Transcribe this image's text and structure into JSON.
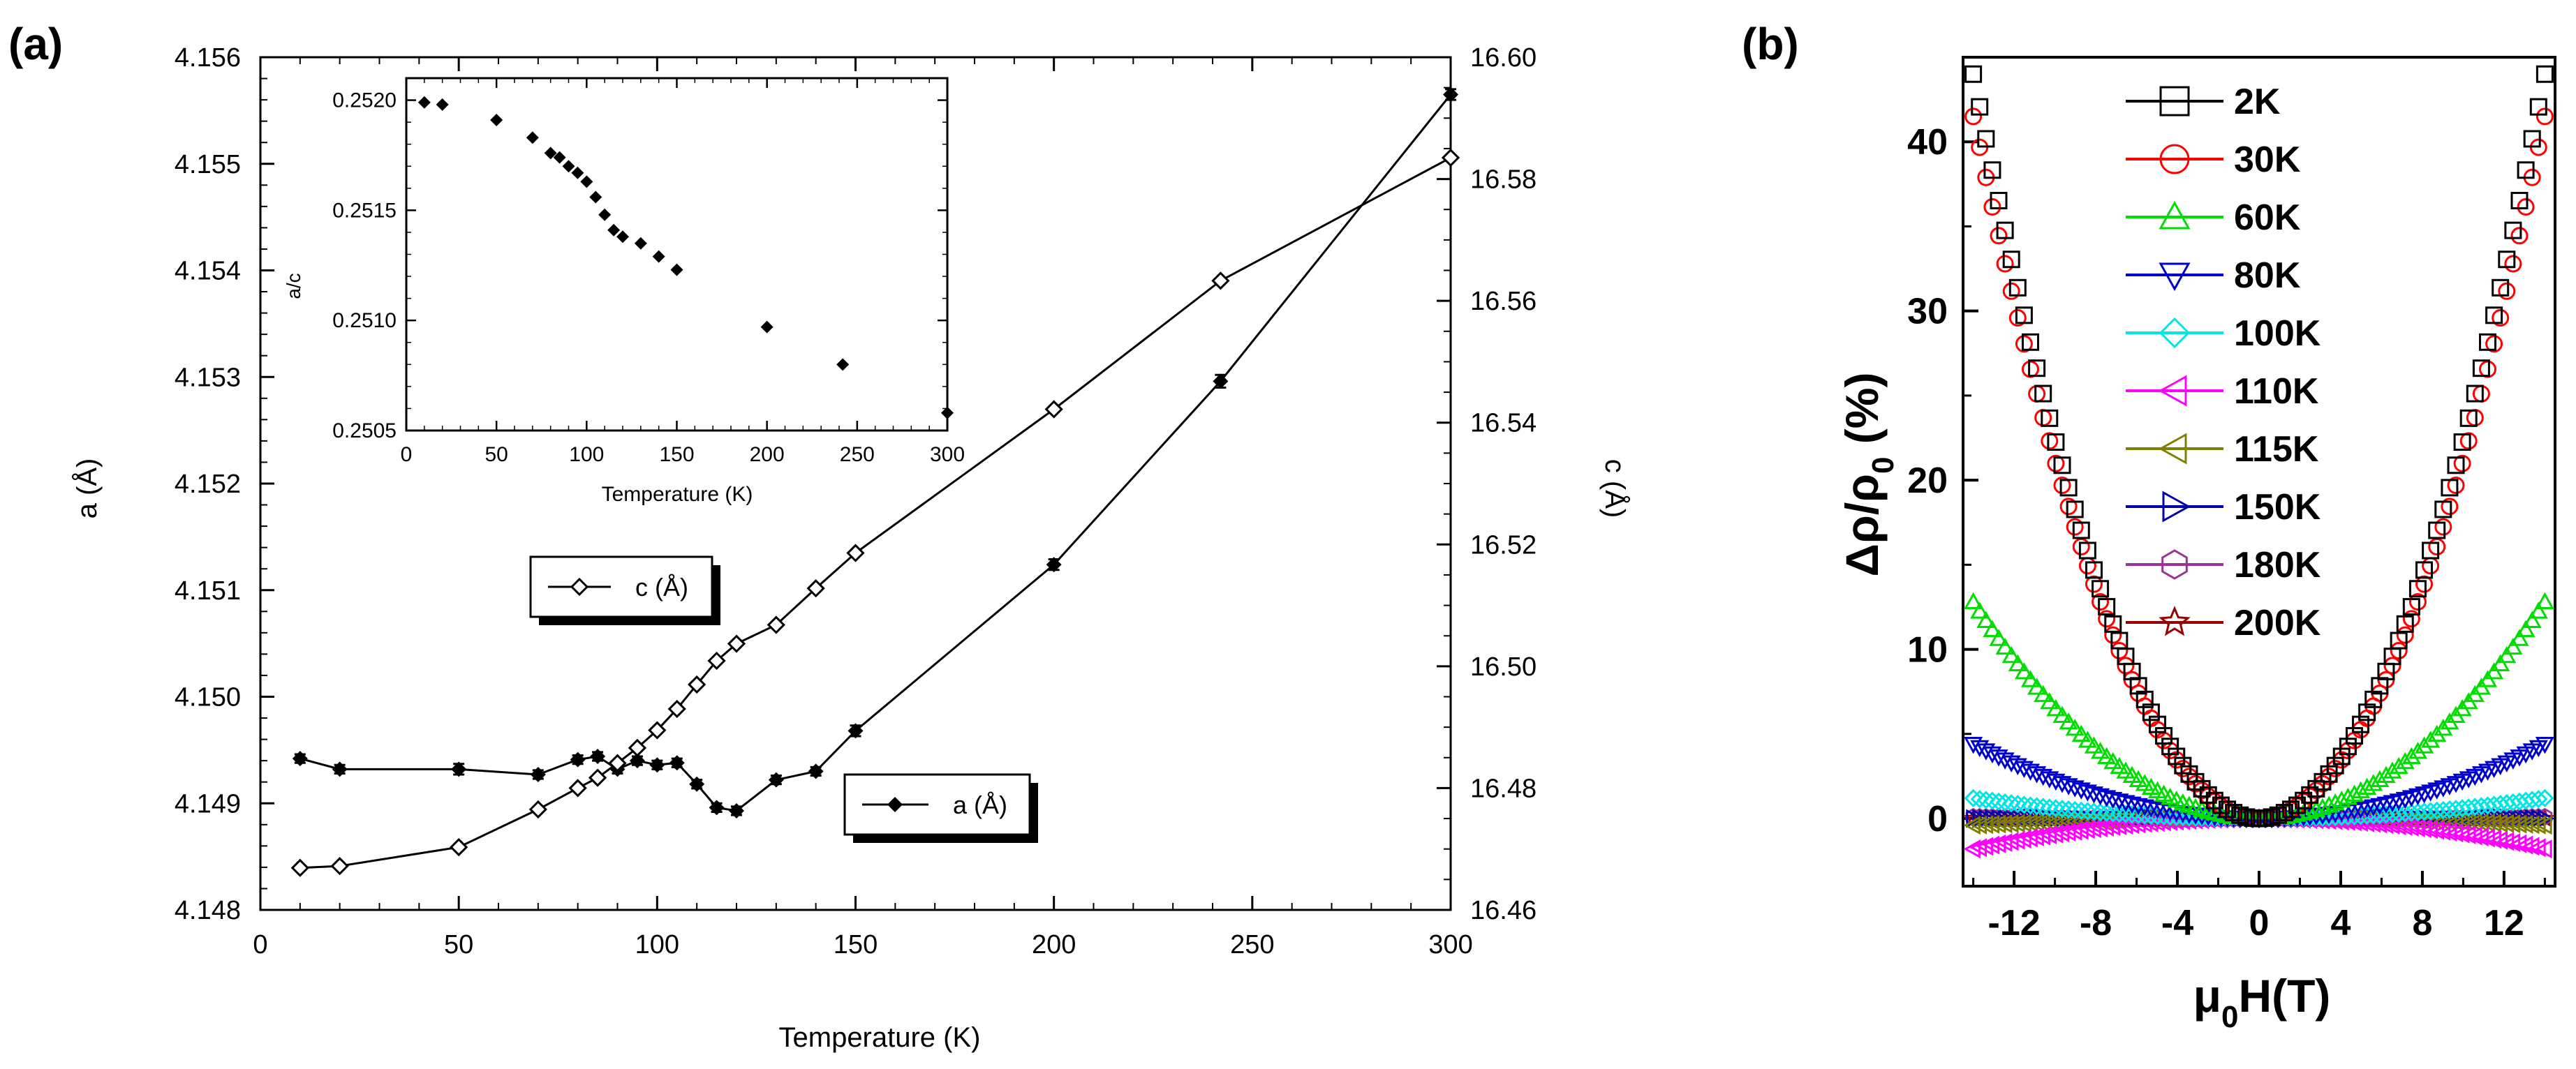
{
  "chart_data": [
    {
      "panel_label": "(a)",
      "type": "line",
      "xlabel": "Temperature (K)",
      "xlim": [
        0,
        300
      ],
      "xticks": [
        0,
        50,
        100,
        150,
        200,
        250,
        300
      ],
      "y_left": {
        "label": "a (Å)",
        "lim": [
          4.148,
          4.156
        ],
        "ticks": [
          "4.148",
          "4.149",
          "4.150",
          "4.151",
          "4.152",
          "4.153",
          "4.154",
          "4.155",
          "4.156"
        ]
      },
      "y_right": {
        "label": "c (Å)",
        "lim": [
          16.46,
          16.6
        ],
        "ticks": [
          "16.46",
          "16.48",
          "16.50",
          "16.52",
          "16.54",
          "16.56",
          "16.58",
          "16.60"
        ]
      },
      "series": [
        {
          "name": "a (Å)",
          "axis": "left",
          "marker": "filled-diamond",
          "x": [
            10,
            20,
            50,
            70,
            80,
            85,
            90,
            95,
            100,
            105,
            110,
            115,
            120,
            130,
            140,
            150,
            200,
            242,
            300
          ],
          "y": [
            4.14942,
            4.14932,
            4.14932,
            4.14927,
            4.14941,
            4.14944,
            4.14932,
            4.1494,
            4.14936,
            4.14938,
            4.14918,
            4.14896,
            4.14893,
            4.14922,
            4.1493,
            4.14968,
            4.15124,
            4.15296,
            4.15565
          ],
          "yerr": [
            4e-05,
            4e-05,
            5e-05,
            4e-05,
            4e-05,
            4e-05,
            4e-05,
            4e-05,
            4e-05,
            4e-05,
            4e-05,
            4e-05,
            4e-05,
            4e-05,
            4e-05,
            5e-05,
            5e-05,
            6e-05,
            5e-05
          ]
        },
        {
          "name": "c (Å)",
          "axis": "right",
          "marker": "open-diamond",
          "x": [
            10,
            20,
            50,
            70,
            80,
            85,
            90,
            95,
            100,
            105,
            110,
            115,
            120,
            130,
            140,
            150,
            200,
            242,
            300
          ],
          "y": [
            16.4669,
            16.4672,
            16.4703,
            16.4765,
            16.48,
            16.4817,
            16.4841,
            16.4866,
            16.4895,
            16.493,
            16.497,
            16.5009,
            16.5037,
            16.5068,
            16.5128,
            16.5186,
            16.5422,
            16.5633,
            16.5835
          ]
        }
      ],
      "legend": [
        {
          "label": "c (Å)",
          "marker": "open-diamond"
        },
        {
          "label": "a (Å)",
          "marker": "filled-diamond"
        }
      ],
      "inset": {
        "type": "scatter",
        "xlabel": "Temperature (K)",
        "ylabel": "a/c",
        "xlim": [
          0,
          300
        ],
        "ylim": [
          0.2505,
          0.2521
        ],
        "xticks": [
          "0",
          "50",
          "100",
          "150",
          "200",
          "250",
          "300"
        ],
        "yticks": [
          "0.2505",
          "0.2510",
          "0.2515",
          "0.2520"
        ],
        "x": [
          10,
          20,
          50,
          70,
          80,
          85,
          90,
          95,
          100,
          105,
          110,
          115,
          120,
          130,
          140,
          150,
          200,
          242,
          300
        ],
        "y": [
          0.25199,
          0.25198,
          0.25191,
          0.25183,
          0.25176,
          0.25174,
          0.2517,
          0.25167,
          0.25163,
          0.25156,
          0.25148,
          0.25141,
          0.25138,
          0.25135,
          0.25129,
          0.25123,
          0.25097,
          0.2508,
          0.25058
        ]
      }
    },
    {
      "panel_label": "(b)",
      "type": "line",
      "xlabel": "μ0H(T)",
      "ylabel": "Δρ/ρ0 (%)",
      "xlim": [
        -14.5,
        14.5
      ],
      "ylim": [
        -4,
        45
      ],
      "xticks": [
        "-12",
        "-8",
        "-4",
        "0",
        "4",
        "8",
        "12"
      ],
      "yticks": [
        "0",
        "10",
        "20",
        "30",
        "40"
      ],
      "series": [
        {
          "name": "2K",
          "color": "#000000",
          "marker": "square",
          "peak_value_at_14T": 44.0
        },
        {
          "name": "30K",
          "color": "#ff0000",
          "marker": "circle",
          "peak_value_at_14T": 41.5
        },
        {
          "name": "60K",
          "color": "#00dd00",
          "marker": "triangle-up",
          "peak_value_at_14T": 12.8
        },
        {
          "name": "80K",
          "color": "#0000cc",
          "marker": "triangle-down",
          "peak_value_at_14T": 4.4
        },
        {
          "name": "100K",
          "color": "#00e5e5",
          "marker": "diamond",
          "peak_value_at_14T": 1.2
        },
        {
          "name": "110K",
          "color": "#ff00ff",
          "marker": "triangle-left",
          "peak_value_at_14T": -1.8
        },
        {
          "name": "115K",
          "color": "#808000",
          "marker": "triangle-left",
          "peak_value_at_14T": -0.4
        },
        {
          "name": "150K",
          "color": "#0000aa",
          "marker": "triangle-right",
          "peak_value_at_14T": 0.0
        },
        {
          "name": "180K",
          "color": "#993399",
          "marker": "hexagon",
          "peak_value_at_14T": 0.1
        },
        {
          "name": "200K",
          "color": "#990000",
          "marker": "star",
          "peak_value_at_14T": 0.0
        }
      ]
    }
  ]
}
